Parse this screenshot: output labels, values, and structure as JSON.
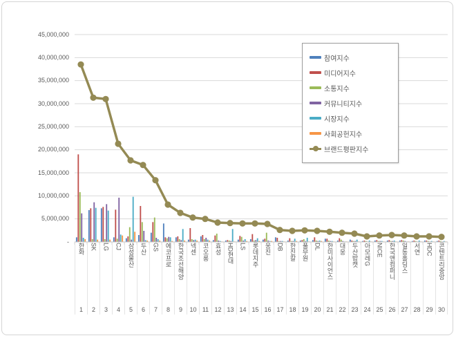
{
  "chart_data": {
    "type": "bar",
    "subtype": "grouped-bars-with-line-overlay",
    "title": "",
    "categories": [
      "한화",
      "SK",
      "LG",
      "CJ",
      "삼성물산",
      "두산",
      "GS",
      "에코프로",
      "한국조선해양",
      "넥센",
      "코오롱",
      "효성",
      "HD현대",
      "LS",
      "롯데지주",
      "웅진",
      "DB",
      "한진칼",
      "풀무원",
      "DL",
      "한미사이언스",
      "대웅",
      "두산밥캣",
      "아모레G",
      "NICE",
      "한국앤컴퍼니",
      "일동홀딩스",
      "서연",
      "HDC",
      "콘텐트리중앙"
    ],
    "rank_labels": [
      "1",
      "2",
      "3",
      "4",
      "5",
      "6",
      "7",
      "8",
      "9",
      "10",
      "11",
      "12",
      "13",
      "14",
      "15",
      "16",
      "17",
      "18",
      "19",
      "20",
      "21",
      "22",
      "23",
      "24",
      "25",
      "26",
      "27",
      "28",
      "29",
      "30"
    ],
    "series": [
      {
        "name": "참여지수",
        "type": "bar",
        "color": "#4F81BD",
        "values": [
          1000000,
          6900000,
          7300000,
          1000000,
          800000,
          1500000,
          2000000,
          4000000,
          1000000,
          500000,
          1200000,
          400000,
          300000,
          500000,
          600000,
          500000,
          1000000,
          300000,
          300000,
          400000,
          700000,
          300000,
          500000,
          200000,
          300000,
          300000,
          300000,
          200000,
          300000,
          200000
        ]
      },
      {
        "name": "미디어지수",
        "type": "bar",
        "color": "#C0504D",
        "values": [
          19000000,
          7300000,
          7600000,
          7000000,
          1200000,
          7800000,
          4300000,
          1000000,
          1200000,
          3000000,
          1500000,
          1400000,
          400000,
          1300000,
          1700000,
          700000,
          900000,
          800000,
          400000,
          1000000,
          700000,
          800000,
          300000,
          300000,
          400000,
          400000,
          400000,
          300000,
          300000,
          300000
        ]
      },
      {
        "name": "소통지수",
        "type": "bar",
        "color": "#9BBB59",
        "values": [
          10800000,
          600000,
          600000,
          700000,
          3200000,
          4300000,
          5300000,
          800000,
          600000,
          600000,
          600000,
          1800000,
          300000,
          1100000,
          300000,
          2000000,
          200000,
          200000,
          600000,
          300000,
          300000,
          500000,
          200000,
          200000,
          200000,
          200000,
          300000,
          200000,
          200000,
          200000
        ]
      },
      {
        "name": "커뮤니티지수",
        "type": "bar",
        "color": "#8064A2",
        "values": [
          6200000,
          8600000,
          8200000,
          9600000,
          500000,
          2400000,
          900000,
          1100000,
          400000,
          400000,
          900000,
          300000,
          200000,
          300000,
          400000,
          300000,
          200000,
          200000,
          200000,
          200000,
          200000,
          200000,
          200000,
          100000,
          200000,
          200000,
          200000,
          100000,
          100000,
          100000
        ]
      },
      {
        "name": "시장지수",
        "type": "bar",
        "color": "#4BACC6",
        "values": [
          900000,
          7400000,
          6800000,
          1600000,
          9800000,
          400000,
          600000,
          1000000,
          2800000,
          500000,
          500000,
          200000,
          2800000,
          600000,
          800000,
          200000,
          200000,
          700000,
          900000,
          300000,
          200000,
          100000,
          500000,
          300000,
          200000,
          300000,
          100000,
          300000,
          200000,
          200000
        ]
      },
      {
        "name": "사회공헌지수",
        "type": "bar",
        "color": "#F79646",
        "values": [
          600000,
          500000,
          500000,
          1400000,
          2200000,
          300000,
          300000,
          200000,
          300000,
          300000,
          300000,
          100000,
          100000,
          200000,
          200000,
          200000,
          100000,
          200000,
          100000,
          200000,
          100000,
          100000,
          100000,
          100000,
          100000,
          100000,
          100000,
          100000,
          100000,
          100000
        ]
      },
      {
        "name": "브랜드평판지수",
        "type": "line",
        "color": "#948A54",
        "values": [
          38500000,
          31300000,
          31000000,
          21300000,
          17700000,
          16700000,
          13400000,
          8100000,
          6300000,
          5300000,
          5000000,
          4200000,
          4100000,
          4000000,
          4000000,
          3900000,
          2600000,
          2400000,
          2500000,
          2400000,
          2200000,
          2000000,
          1800000,
          1200000,
          1400000,
          1500000,
          1400000,
          1200000,
          1200000,
          1100000
        ]
      }
    ],
    "y_axis": {
      "min": 0,
      "max": 45000000,
      "step": 5000000,
      "tick_labels": [
        "45,000,000",
        "40,000,000",
        "35,000,000",
        "30,000,000",
        "25,000,000",
        "20,000,000",
        "15,000,000",
        "10,000,000",
        "5,000,000",
        "-"
      ]
    },
    "legend_position": "top-right-inside",
    "grid": true,
    "colors": {
      "grid": "#d9d9d9",
      "axis": "#bfbfbf",
      "text": "#595959",
      "background": "#ffffff",
      "frame_border": "#d4d4d4"
    }
  }
}
